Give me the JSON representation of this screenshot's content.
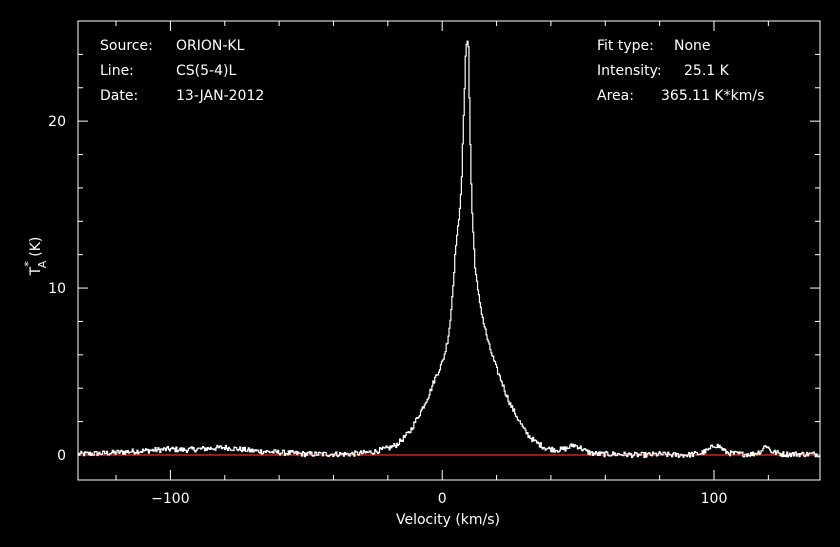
{
  "colors": {
    "background": "#000000",
    "foreground": "#ffffff",
    "baseline": "#cc2222"
  },
  "header": {
    "left": [
      {
        "label": "Source:",
        "value": "ORION-KL"
      },
      {
        "label": "Line:",
        "value": "CS(5-4)L"
      },
      {
        "label": "Date:",
        "value": "13-JAN-2012"
      }
    ],
    "right": [
      {
        "label": "Fit type:",
        "value": "None"
      },
      {
        "label": "Intensity:",
        "value": "25.1 K"
      },
      {
        "label": "Area:",
        "value": "365.11 K*km/s"
      }
    ]
  },
  "chart_data": {
    "type": "line",
    "xlabel": "Velocity (km/s)",
    "ylabel": {
      "main": "T",
      "sub": "A",
      "sup": "*",
      "unit": "(K)"
    },
    "xlim": [
      -134,
      139
    ],
    "ylim": [
      -1.5,
      26
    ],
    "x_ticks": [
      -100,
      0,
      100
    ],
    "x_tick_labels": [
      "−100",
      "0",
      "100"
    ],
    "y_ticks": [
      0,
      10,
      20
    ],
    "y_tick_labels": [
      "0",
      "10",
      "20"
    ],
    "grid": false,
    "baseline_y": 0,
    "series": [
      {
        "x": [
          -134,
          -125,
          -115,
          -105,
          -100,
          -95,
          -90,
          -85,
          -80,
          -75,
          -70,
          -65,
          -60,
          -55,
          -50,
          -45,
          -40,
          -35,
          -30,
          -25,
          -20,
          -17,
          -15,
          -12,
          -10,
          -8,
          -5,
          -3,
          -1,
          0,
          1,
          2,
          3,
          4,
          5,
          6,
          7,
          8,
          8.5,
          9,
          9.5,
          10,
          10.5,
          11,
          12,
          13,
          14,
          15,
          16,
          17,
          18,
          19,
          20,
          21,
          22,
          23,
          24,
          25,
          26,
          27,
          28,
          29,
          30,
          32,
          34,
          36,
          38,
          40,
          43,
          46,
          48,
          50,
          53,
          55,
          58,
          60,
          65,
          70,
          75,
          80,
          85,
          90,
          95,
          98,
          100,
          102,
          104,
          106,
          110,
          114,
          117,
          119,
          121,
          125,
          130,
          135,
          139
        ],
        "y": [
          0.05,
          0.1,
          0.2,
          0.3,
          0.35,
          0.3,
          0.35,
          0.4,
          0.45,
          0.35,
          0.25,
          0.2,
          0.15,
          0.1,
          0.05,
          0.05,
          0.05,
          0.05,
          0.1,
          0.2,
          0.4,
          0.6,
          0.9,
          1.4,
          2.0,
          2.6,
          3.6,
          4.5,
          5.2,
          5.6,
          6.2,
          7.0,
          8.3,
          10.5,
          12.8,
          14.0,
          16.5,
          21.5,
          24.0,
          25.1,
          24.5,
          20.0,
          16.5,
          14.0,
          11.2,
          9.8,
          8.9,
          8.0,
          7.3,
          6.6,
          6.1,
          5.6,
          5.1,
          4.7,
          4.3,
          3.8,
          3.4,
          3.0,
          2.7,
          2.4,
          2.1,
          1.8,
          1.5,
          1.1,
          0.8,
          0.6,
          0.4,
          0.35,
          0.3,
          0.4,
          0.6,
          0.5,
          0.2,
          0.1,
          0.05,
          0.05,
          0.05,
          0.0,
          0.0,
          0.05,
          0.0,
          0.0,
          0.1,
          0.3,
          0.6,
          0.5,
          0.2,
          0.1,
          0.05,
          0.05,
          0.2,
          0.6,
          0.2,
          0.05,
          0.05,
          0.05,
          0.05
        ]
      }
    ]
  }
}
